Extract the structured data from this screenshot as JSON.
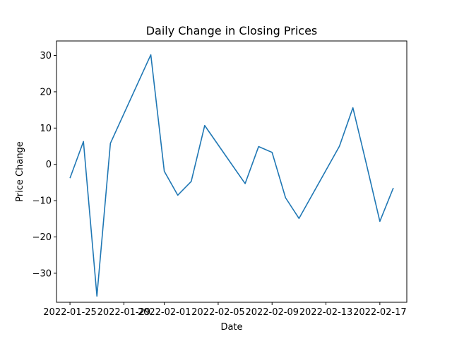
{
  "chart_data": {
    "type": "line",
    "title": "Daily Change in Closing Prices",
    "xlabel": "Date",
    "ylabel": "Price Change",
    "x_tick_labels": [
      "2022-01-25",
      "2022-01-29",
      "2022-02-01",
      "2022-02-05",
      "2022-02-09",
      "2022-02-13",
      "2022-02-17"
    ],
    "y_tick_labels": [
      "−30",
      "−20",
      "−10",
      "0",
      "10",
      "20",
      "30"
    ],
    "ylim": [
      -38,
      34
    ],
    "xlim": [
      "2022-01-24",
      "2022-02-19"
    ],
    "grid": false,
    "line_color": "#1f77b4",
    "series": [
      {
        "x": [
          "2022-01-25",
          "2022-01-26",
          "2022-01-27",
          "2022-01-28",
          "2022-01-31",
          "2022-02-01",
          "2022-02-02",
          "2022-02-03",
          "2022-02-04",
          "2022-02-07",
          "2022-02-08",
          "2022-02-09",
          "2022-02-10",
          "2022-02-11",
          "2022-02-14",
          "2022-02-15",
          "2022-02-16",
          "2022-02-17",
          "2022-02-18"
        ],
        "values": [
          -3.8,
          6.3,
          -36.3,
          5.8,
          30.2,
          -1.9,
          -8.5,
          -4.7,
          10.7,
          -5.3,
          4.9,
          3.3,
          -9.2,
          -14.9,
          5.0,
          15.6,
          0.1,
          -15.7,
          -6.5
        ]
      }
    ]
  }
}
